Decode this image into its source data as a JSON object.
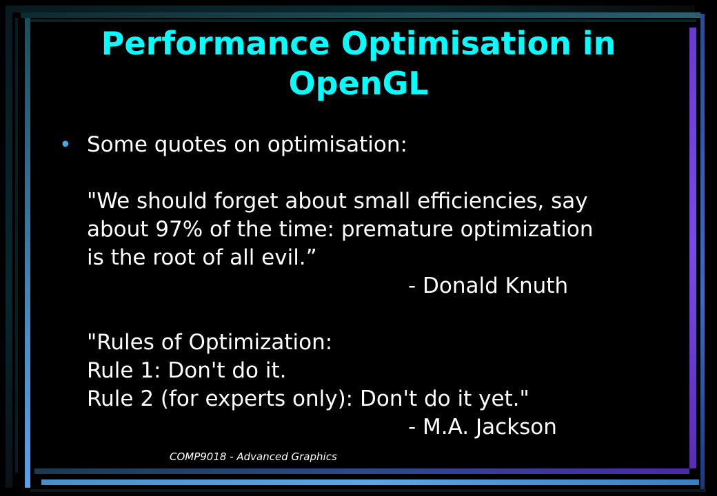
{
  "slide": {
    "title_line1": "Performance Optimisation in",
    "title_line2": "OpenGL",
    "bullet": "•",
    "intro": "Some quotes on optimisation:",
    "quote1": {
      "line1": "\"We should forget about small efficiencies, say",
      "line2": "about 97% of the time: premature optimization",
      "line3": "is the root of all evil.”",
      "author": "- Donald Knuth"
    },
    "quote2": {
      "line1": "\"Rules of Optimization:",
      "line2": "Rule 1: Don't do it.",
      "line3": "Rule 2 (for experts only): Don't do it yet.\"",
      "author": "- M.A. Jackson"
    },
    "footer": "COMP9018 - Advanced Graphics"
  },
  "colors": {
    "title": "#00ffff",
    "text": "#ffffff",
    "bullet": "#4aa8e0",
    "background": "#000000"
  }
}
